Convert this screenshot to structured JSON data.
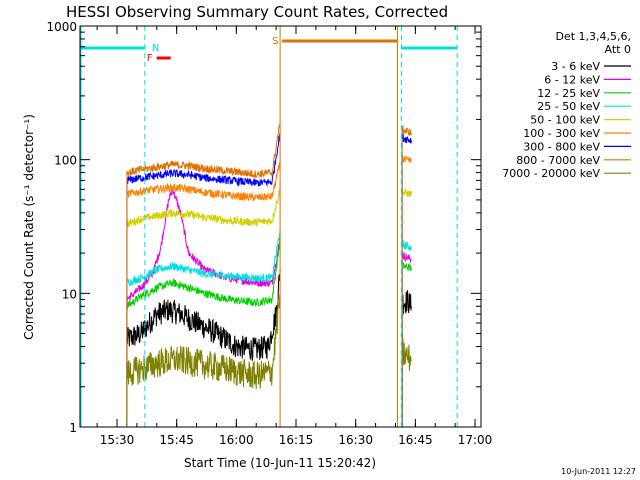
{
  "chart_data": {
    "type": "line",
    "title": "HESSI Observing Summary Count Rates, Corrected",
    "xlabel": "Start Time (10-Jun-11 15:20:42)",
    "ylabel": "Corrected Count Rate (s⁻¹ detector⁻¹)",
    "yscale": "log",
    "ylim": [
      1,
      1000
    ],
    "xlim": [
      "15:20:42",
      "17:01:30"
    ],
    "x_ticks": [
      "15:30",
      "15:45",
      "16:00",
      "16:15",
      "16:30",
      "16:45",
      "17:00"
    ],
    "y_ticks": [
      "1",
      "10",
      "100",
      "1000"
    ],
    "legend_header": [
      "Det 1,3,4,5,6,",
      "Att 0"
    ],
    "timestamp": "10-Jun-2011 12:27",
    "series": [
      {
        "name": "3 - 6 keV",
        "color": "#000000",
        "segments": [
          [
            [
              "15:32:30",
              4.5
            ],
            [
              "15:36",
              5
            ],
            [
              "15:40",
              7
            ],
            [
              "15:43",
              7.5
            ],
            [
              "15:46",
              7
            ],
            [
              "15:50",
              6
            ],
            [
              "15:55",
              5
            ],
            [
              "16:00",
              4
            ],
            [
              "16:05",
              3.8
            ],
            [
              "16:08",
              4
            ],
            [
              "16:10",
              7
            ],
            [
              "16:11",
              15
            ]
          ],
          [
            [
              "16:41:40",
              9
            ],
            [
              "16:42",
              8.5
            ],
            [
              "16:43",
              8.8
            ],
            [
              "16:44",
              8
            ]
          ]
        ]
      },
      {
        "name": "6 - 12 keV",
        "color": "#e000e0",
        "segments": [
          [
            [
              "15:32:30",
              9
            ],
            [
              "15:36",
              11
            ],
            [
              "15:39",
              14
            ],
            [
              "15:41",
              22
            ],
            [
              "15:43",
              50
            ],
            [
              "15:44",
              60
            ],
            [
              "15:46",
              40
            ],
            [
              "15:48",
              20
            ],
            [
              "15:52",
              15
            ],
            [
              "15:58",
              13
            ],
            [
              "16:05",
              12
            ],
            [
              "16:09",
              12
            ],
            [
              "16:11",
              25
            ]
          ],
          [
            [
              "16:41:40",
              20
            ],
            [
              "16:42",
              19
            ],
            [
              "16:44",
              18
            ]
          ]
        ]
      },
      {
        "name": "12 - 25 keV",
        "color": "#00d000",
        "segments": [
          [
            [
              "15:32:30",
              8
            ],
            [
              "15:36",
              9.5
            ],
            [
              "15:40",
              11
            ],
            [
              "15:44",
              12
            ],
            [
              "15:48",
              11
            ],
            [
              "15:52",
              10
            ],
            [
              "15:58",
              9
            ],
            [
              "16:05",
              8.5
            ],
            [
              "16:09",
              9
            ],
            [
              "16:11",
              25
            ]
          ],
          [
            [
              "16:41:40",
              17
            ],
            [
              "16:42",
              16
            ],
            [
              "16:44",
              15.5
            ]
          ]
        ]
      },
      {
        "name": "25 - 50 keV",
        "color": "#00e0e0",
        "segments": [
          [
            [
              "15:32:30",
              12
            ],
            [
              "15:36",
              13
            ],
            [
              "15:40",
              15
            ],
            [
              "15:44",
              16
            ],
            [
              "15:48",
              15
            ],
            [
              "15:52",
              14
            ],
            [
              "15:58",
              13.5
            ],
            [
              "16:05",
              13
            ],
            [
              "16:09",
              13
            ],
            [
              "16:11",
              30
            ]
          ],
          [
            [
              "16:41:40",
              25
            ],
            [
              "16:42",
              23
            ],
            [
              "16:44",
              22
            ]
          ]
        ]
      },
      {
        "name": "50 - 100 keV",
        "color": "#d0d000",
        "segments": [
          [
            [
              "15:32:30",
              33
            ],
            [
              "15:36",
              36
            ],
            [
              "15:40",
              38
            ],
            [
              "15:44",
              40
            ],
            [
              "15:48",
              39
            ],
            [
              "15:52",
              37
            ],
            [
              "15:58",
              35
            ],
            [
              "16:05",
              34
            ],
            [
              "16:09",
              35
            ],
            [
              "16:11",
              60
            ]
          ],
          [
            [
              "16:41:40",
              60
            ],
            [
              "16:42",
              57
            ],
            [
              "16:44",
              55
            ]
          ]
        ]
      },
      {
        "name": "100 - 300 keV",
        "color": "#ff8000",
        "segments": [
          [
            [
              "15:32:30",
              55
            ],
            [
              "15:36",
              58
            ],
            [
              "15:40",
              60
            ],
            [
              "15:44",
              62
            ],
            [
              "15:48",
              60
            ],
            [
              "15:52",
              57
            ],
            [
              "15:58",
              54
            ],
            [
              "16:05",
              52
            ],
            [
              "16:09",
              53
            ],
            [
              "16:11",
              95
            ]
          ],
          [
            [
              "16:41:40",
              105
            ],
            [
              "16:42",
              100
            ],
            [
              "16:44",
              97
            ]
          ]
        ]
      },
      {
        "name": "300 - 800 keV",
        "color": "#0000ff",
        "segments": [
          [
            [
              "15:32:30",
              70
            ],
            [
              "15:36",
              73
            ],
            [
              "15:40",
              76
            ],
            [
              "15:44",
              79
            ],
            [
              "15:48",
              77
            ],
            [
              "15:52",
              73
            ],
            [
              "15:58",
              70
            ],
            [
              "16:05",
              67
            ],
            [
              "16:09",
              68
            ],
            [
              "16:11",
              160
            ]
          ],
          [
            [
              "16:41:40",
              150
            ],
            [
              "16:42",
              145
            ],
            [
              "16:44",
              140
            ]
          ]
        ]
      },
      {
        "name": "800 - 7000 keV",
        "color": "#e07000",
        "segments": [
          [
            [
              "15:32:30",
              80
            ],
            [
              "15:36",
              84
            ],
            [
              "15:40",
              88
            ],
            [
              "15:44",
              92
            ],
            [
              "15:48",
              90
            ],
            [
              "15:52",
              86
            ],
            [
              "15:58",
              82
            ],
            [
              "16:05",
              78
            ],
            [
              "16:09",
              80
            ],
            [
              "16:11",
              190
            ]
          ],
          [
            [
              "16:41:40",
              170
            ],
            [
              "16:42",
              165
            ],
            [
              "16:44",
              160
            ]
          ]
        ]
      },
      {
        "name": "7000 - 20000 keV",
        "color": "#808000",
        "segments": [
          [
            [
              "15:32:30",
              2.5
            ],
            [
              "15:36",
              2.7
            ],
            [
              "15:40",
              3
            ],
            [
              "15:45",
              3.2
            ],
            [
              "15:50",
              3
            ],
            [
              "15:55",
              2.8
            ],
            [
              "16:00",
              2.6
            ],
            [
              "16:05",
              2.4
            ],
            [
              "16:09",
              2.6
            ],
            [
              "16:11",
              10
            ]
          ],
          [
            [
              "16:41:40",
              4
            ],
            [
              "16:42",
              3.5
            ],
            [
              "16:44",
              3.2
            ]
          ]
        ]
      }
    ],
    "flags": [
      {
        "label": "N",
        "color": "#00e0e0",
        "start": "15:20:42",
        "end": "15:37:00"
      },
      {
        "label": "N",
        "color": "#00e0e0",
        "start": "16:41:30",
        "end": "16:55:30"
      },
      {
        "label": "F",
        "color": "#ff0000",
        "start": "15:40:00",
        "end": "15:43:30"
      },
      {
        "label": "S",
        "color": "#e07000",
        "start": "16:11:30",
        "end": "16:40:30"
      }
    ],
    "markers": [
      {
        "time": "15:37:00",
        "color": "#00e0e0"
      },
      {
        "time": "16:41:30",
        "color": "#00e0e0"
      },
      {
        "time": "16:55:30",
        "color": "#00e0e0"
      },
      {
        "time": "16:11:00",
        "color": "#e07000"
      },
      {
        "time": "16:40:30",
        "color": "#e07000"
      }
    ]
  }
}
